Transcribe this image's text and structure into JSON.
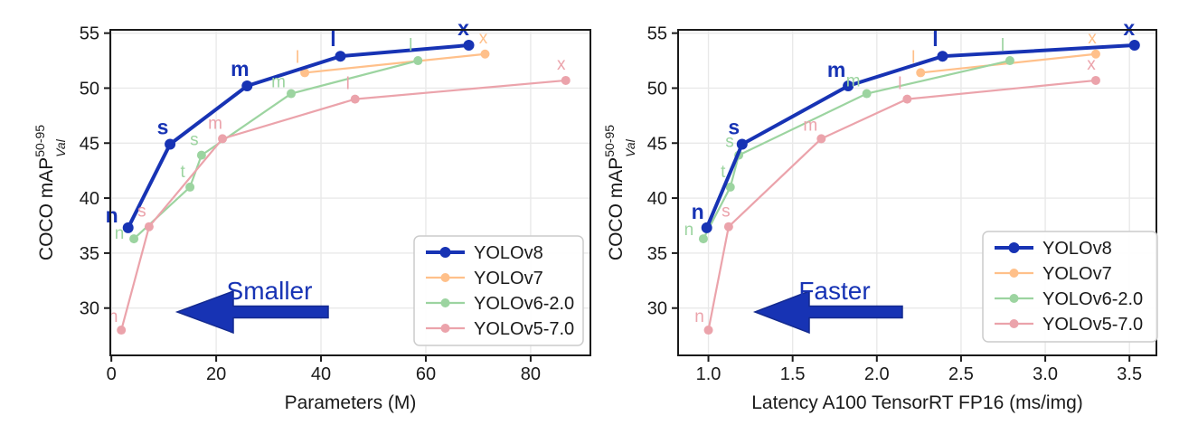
{
  "figure": {
    "background": "#ffffff",
    "axis_color": "#1a1a1a",
    "grid_color": "#e9e9e9",
    "annotation_color": "#1733b4"
  },
  "chart_data": [
    {
      "type": "line",
      "title": "",
      "xlabel": "Parameters (M)",
      "ylabel": "COCO mAP",
      "ylabel_superscript": "50-95",
      "ylabel_subscript": "Val",
      "xlim": [
        -0.2,
        91.4
      ],
      "ylim": [
        25.7,
        55.3
      ],
      "xtick_values": [
        0,
        20,
        40,
        60,
        80
      ],
      "xtick_labels": [
        "0",
        "20",
        "40",
        "60",
        "80"
      ],
      "ytick_values": [
        30,
        35,
        40,
        45,
        50,
        55
      ],
      "ytick_labels": [
        "30",
        "35",
        "40",
        "45",
        "50",
        "55"
      ],
      "grid": true,
      "legend_position": "lower right",
      "annotation_text": "Smaller",
      "series": [
        {
          "name": "YOLOv8",
          "color": "#1733b4",
          "emphasis": true,
          "points": [
            [
              3.2,
              37.3,
              "n",
              -18,
              -6
            ],
            [
              11.2,
              44.9,
              "s"
            ],
            [
              25.9,
              50.2,
              "m"
            ],
            [
              43.7,
              52.9,
              "l"
            ],
            [
              68.2,
              53.9,
              "x",
              -6,
              -11
            ]
          ]
        },
        {
          "name": "YOLOv7",
          "color": "#ffc08a",
          "emphasis": false,
          "points": [
            [
              36.9,
              51.4,
              "l"
            ],
            [
              71.3,
              53.1,
              "x",
              -2,
              -12
            ]
          ]
        },
        {
          "name": "YOLOv6-2.0",
          "color": "#9cd4a0",
          "emphasis": false,
          "points": [
            [
              4.3,
              36.3,
              "n",
              -16,
              0
            ],
            [
              15.0,
              41.0,
              "t"
            ],
            [
              17.2,
              43.9,
              "s"
            ],
            [
              34.3,
              49.5,
              "m",
              -14,
              -7
            ],
            [
              58.5,
              52.5,
              "l"
            ]
          ]
        },
        {
          "name": "YOLOv5-7.0",
          "color": "#eba3ab",
          "emphasis": false,
          "points": [
            [
              1.9,
              28.0,
              "n",
              -9,
              -9
            ],
            [
              7.2,
              37.4,
              "s"
            ],
            [
              21.2,
              45.4,
              "m"
            ],
            [
              46.5,
              49.0,
              "l"
            ],
            [
              86.7,
              50.7,
              "x",
              -5,
              -12
            ]
          ]
        }
      ]
    },
    {
      "type": "line",
      "title": "",
      "xlabel": "Latency A100 TensorRT FP16 (ms/img)",
      "ylabel": "COCO mAP",
      "ylabel_superscript": "50-95",
      "ylabel_subscript": "Val",
      "xlim": [
        0.82,
        3.66
      ],
      "ylim": [
        25.7,
        55.3
      ],
      "xtick_values": [
        1.0,
        1.5,
        2.0,
        2.5,
        3.0,
        3.5
      ],
      "xtick_labels": [
        "1.0",
        "1.5",
        "2.0",
        "2.5",
        "3.0",
        "3.5"
      ],
      "ytick_values": [
        30,
        35,
        40,
        45,
        50,
        55
      ],
      "ytick_labels": [
        "30",
        "35",
        "40",
        "45",
        "50",
        "55"
      ],
      "grid": true,
      "legend_position": "lower right",
      "annotation_text": "Faster",
      "series": [
        {
          "name": "YOLOv8",
          "color": "#1733b4",
          "emphasis": true,
          "points": [
            [
              0.99,
              37.3,
              "n",
              -10,
              -10
            ],
            [
              1.2,
              44.9,
              "s",
              -9,
              -11
            ],
            [
              1.83,
              50.2,
              "m",
              -13,
              -10
            ],
            [
              2.39,
              52.9,
              "l"
            ],
            [
              3.53,
              53.9,
              "x",
              -6,
              -11
            ]
          ]
        },
        {
          "name": "YOLOv7",
          "color": "#ffc08a",
          "emphasis": false,
          "points": [
            [
              2.26,
              51.4,
              "l"
            ],
            [
              3.3,
              53.1,
              "x",
              -4,
              -12
            ]
          ]
        },
        {
          "name": "YOLOv6-2.0",
          "color": "#9cd4a0",
          "emphasis": false,
          "points": [
            [
              0.97,
              36.3,
              "n",
              -16,
              -4
            ],
            [
              1.13,
              41.0,
              "t"
            ],
            [
              1.18,
              43.9,
              "s",
              -10,
              -9
            ],
            [
              1.94,
              49.5,
              "m",
              -15,
              -8
            ],
            [
              2.79,
              52.5,
              "l"
            ]
          ]
        },
        {
          "name": "YOLOv5-7.0",
          "color": "#eba3ab",
          "emphasis": false,
          "points": [
            [
              1.0,
              28.0,
              "n",
              -10,
              -9
            ],
            [
              1.12,
              37.4,
              "s",
              -3,
              -11
            ],
            [
              1.67,
              45.4,
              "m",
              -12,
              -9
            ],
            [
              2.18,
              49.0,
              "l"
            ],
            [
              3.3,
              50.7,
              "x",
              -5,
              -12
            ]
          ]
        }
      ]
    }
  ]
}
